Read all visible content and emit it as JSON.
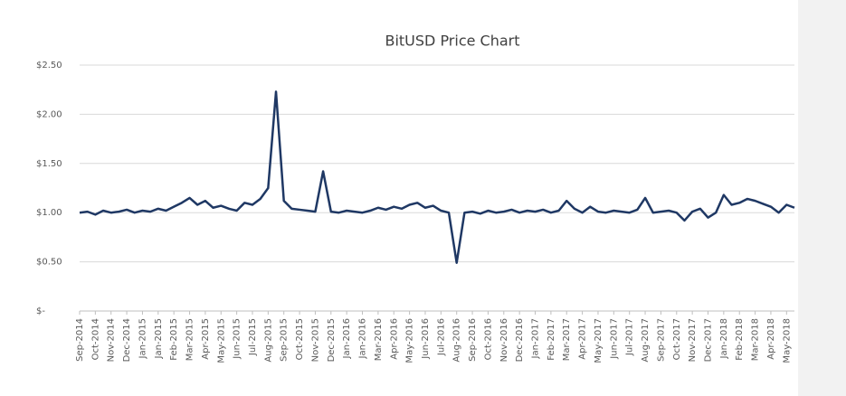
{
  "chart_data": {
    "type": "line",
    "title": "BitUSD Price Chart",
    "categories": [
      "Sep-2014",
      null,
      "Oct-2014",
      null,
      "Nov-2014",
      null,
      "Dec-2014",
      null,
      "Jan-2015",
      null,
      "Jan-2015",
      null,
      "Feb-2015",
      null,
      "Mar-2015",
      null,
      "Apr-2015",
      null,
      "May-2015",
      null,
      "Jun-2015",
      null,
      "Jul-2015",
      null,
      "Aug-2015",
      null,
      "Sep-2015",
      null,
      "Oct-2015",
      null,
      "Nov-2015",
      null,
      "Dec-2015",
      null,
      "Jan-2016",
      null,
      "Jan-2016",
      null,
      "Mar-2016",
      null,
      "Apr-2016",
      null,
      "May-2016",
      null,
      "Jun-2016",
      null,
      "Jul-2016",
      null,
      "Aug-2016",
      null,
      "Sep-2016",
      null,
      "Oct-2016",
      null,
      "Nov-2016",
      null,
      "Dec-2016",
      null,
      "Jan-2017",
      null,
      "Feb-2017",
      null,
      "Mar-2017",
      null,
      "Apr-2017",
      null,
      "May-2017",
      null,
      "Jun-2017",
      null,
      "Jul-2017",
      null,
      "Aug-2017",
      null,
      "Sep-2017",
      null,
      "Oct-2017",
      null,
      "Nov-2017",
      null,
      "Dec-2017",
      null,
      "Jan-2018",
      null,
      "Feb-2018",
      null,
      "Mar-2018",
      null,
      "Apr-2018",
      null,
      "May-2018",
      null
    ],
    "series": [
      {
        "color": "#1f3864",
        "values": [
          1.0,
          1.01,
          0.98,
          1.02,
          1.0,
          1.01,
          1.03,
          1.0,
          1.02,
          1.01,
          1.04,
          1.02,
          1.06,
          1.1,
          1.15,
          1.08,
          1.12,
          1.05,
          1.07,
          1.04,
          1.02,
          1.1,
          1.08,
          1.14,
          1.25,
          2.23,
          1.12,
          1.04,
          1.03,
          1.02,
          1.01,
          1.42,
          1.01,
          1.0,
          1.02,
          1.01,
          1.0,
          1.02,
          1.05,
          1.03,
          1.06,
          1.04,
          1.08,
          1.1,
          1.05,
          1.07,
          1.02,
          1.0,
          0.49,
          1.0,
          1.01,
          0.99,
          1.02,
          1.0,
          1.01,
          1.03,
          1.0,
          1.02,
          1.01,
          1.03,
          1.0,
          1.02,
          1.12,
          1.04,
          1.0,
          1.06,
          1.01,
          1.0,
          1.02,
          1.01,
          1.0,
          1.03,
          1.15,
          1.0,
          1.01,
          1.02,
          1.0,
          0.92,
          1.01,
          1.04,
          0.95,
          1.0,
          1.18,
          1.08,
          1.1,
          1.14,
          1.12,
          1.09,
          1.06,
          1.0,
          1.08,
          1.05
        ]
      }
    ],
    "ylim": [
      0,
      2.5
    ],
    "yticks": [
      {
        "value": 0,
        "label": "$-"
      },
      {
        "value": 0.5,
        "label": "$0.50"
      },
      {
        "value": 1,
        "label": "$1.00"
      },
      {
        "value": 1.5,
        "label": "$1.50"
      },
      {
        "value": 2,
        "label": "$2.00"
      },
      {
        "value": 2.5,
        "label": "$2.50"
      }
    ],
    "grid": true
  }
}
